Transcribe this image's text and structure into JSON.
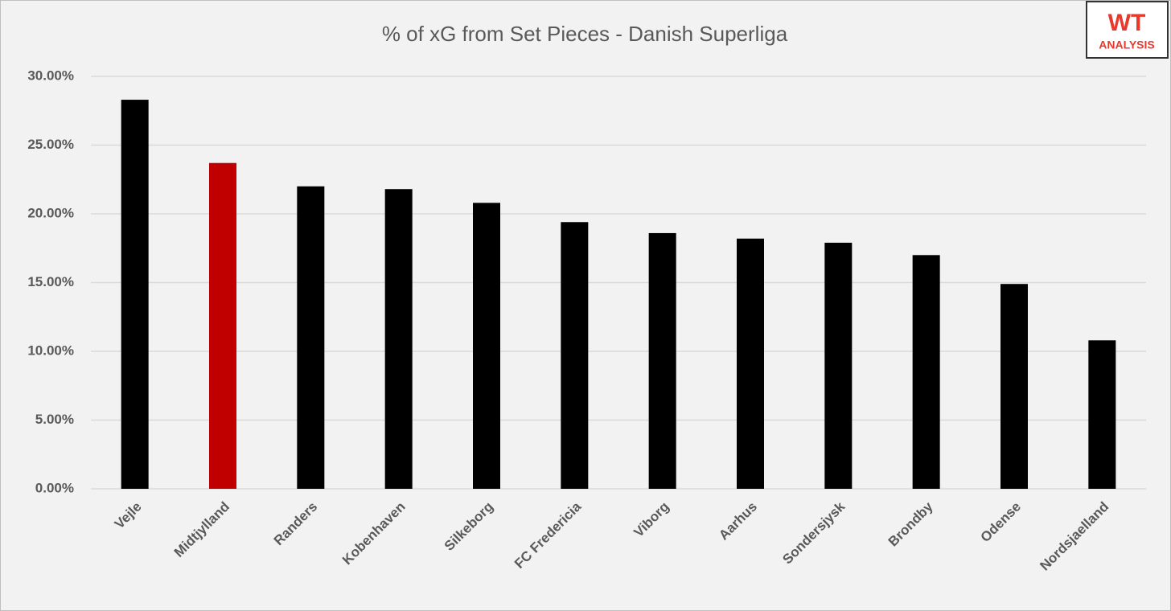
{
  "chart_data": {
    "type": "bar",
    "title": "% of xG from Set Pieces - Danish Superliga",
    "categories": [
      "Vejle",
      "Midtjylland",
      "Randers",
      "Kobenhaven",
      "Silkeborg",
      "FC Fredericia",
      "Viborg",
      "Aarhus",
      "Sondersjysk",
      "Brondby",
      "Odense",
      "Nordsjaelland"
    ],
    "values": [
      28.3,
      23.7,
      22.0,
      21.8,
      20.8,
      19.4,
      18.6,
      18.2,
      17.9,
      17.0,
      14.9,
      10.8
    ],
    "colors": [
      "#000000",
      "#c00000",
      "#000000",
      "#000000",
      "#000000",
      "#000000",
      "#000000",
      "#000000",
      "#000000",
      "#000000",
      "#000000",
      "#000000"
    ],
    "ylim": [
      0,
      30
    ],
    "yticks": [
      {
        "value": 0,
        "label": "0.00%"
      },
      {
        "value": 5,
        "label": "5.00%"
      },
      {
        "value": 10,
        "label": "10.00%"
      },
      {
        "value": 15,
        "label": "15.00%"
      },
      {
        "value": 20,
        "label": "20.00%"
      },
      {
        "value": 25,
        "label": "25.00%"
      },
      {
        "value": 30,
        "label": "30.00%"
      }
    ],
    "grid": true
  },
  "logo": {
    "top": "WT",
    "bottom": "ANALYSIS"
  }
}
